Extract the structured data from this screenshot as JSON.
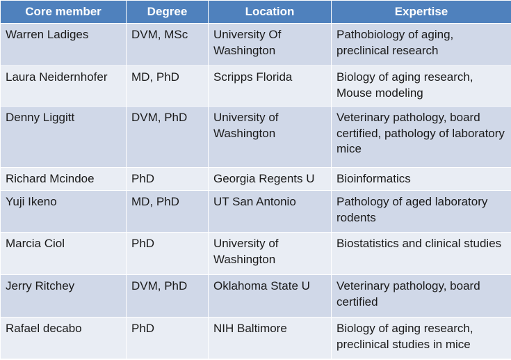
{
  "table": {
    "headers": [
      "Core member",
      "Degree",
      "Location",
      "Expertise"
    ],
    "rows": [
      [
        "Warren Ladiges",
        "DVM, MSc",
        "University Of Washington",
        "Pathobiology of aging, preclinical research"
      ],
      [
        "Laura Neidernhofer",
        "MD, PhD",
        "Scripps Florida",
        "Biology of aging research, Mouse modeling"
      ],
      [
        "Denny Liggitt",
        "DVM, PhD",
        "University of Washington",
        "Veterinary pathology, board certified, pathology of laboratory mice"
      ],
      [
        "Richard Mcindoe",
        "PhD",
        "Georgia Regents U",
        "Bioinformatics"
      ],
      [
        "Yuji Ikeno",
        "MD, PhD",
        "UT San Antonio",
        "Pathology of aged laboratory rodents"
      ],
      [
        "Marcia Ciol",
        "PhD",
        "University of Washington",
        "Biostatistics and clinical studies"
      ],
      [
        "Jerry Ritchey",
        "DVM, PhD",
        "Oklahoma State U",
        "Veterinary pathology, board certified"
      ],
      [
        "Rafael decabo",
        "PhD",
        "NIH Baltimore",
        "Biology of aging research, preclinical studies in mice"
      ]
    ]
  },
  "colors": {
    "header_bg": "#4f81bd",
    "header_text": "#ffffff",
    "row_odd_bg": "#d0d8e8",
    "row_even_bg": "#e9edf4",
    "cell_text": "#1a1a1a"
  }
}
